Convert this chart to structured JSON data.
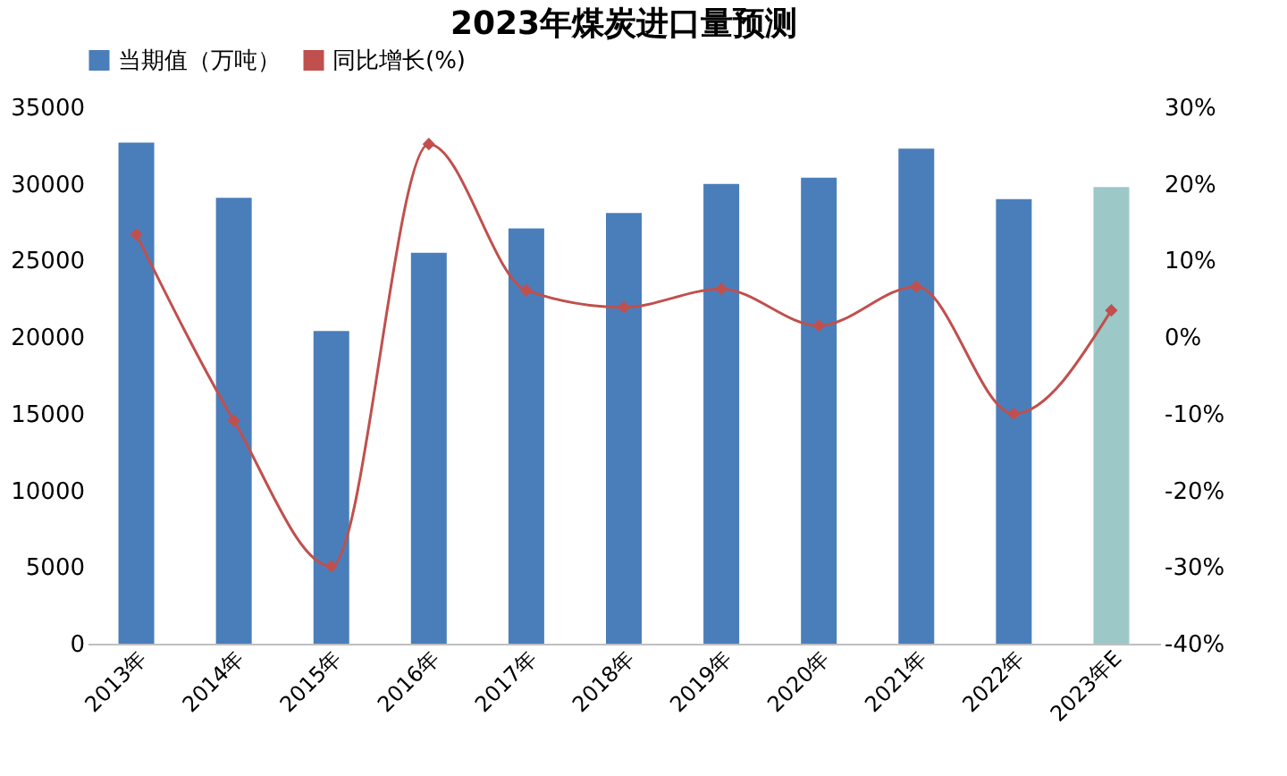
{
  "chart_data": {
    "type": "bar",
    "title": "2023年煤炭进口量预测",
    "categories": [
      "2013年",
      "2014年",
      "2015年",
      "2016年",
      "2017年",
      "2018年",
      "2019年",
      "2020年",
      "2021年",
      "2022年",
      "2023年E"
    ],
    "series": [
      {
        "name": "当期值（万吨）",
        "color": "#4a7ebb",
        "colors": [
          "#4a7ebb",
          "#4a7ebb",
          "#4a7ebb",
          "#4a7ebb",
          "#4a7ebb",
          "#4a7ebb",
          "#4a7ebb",
          "#4a7ebb",
          "#4a7ebb",
          "#4a7ebb",
          "#9cc8c8"
        ],
        "values": [
          32700,
          29100,
          20400,
          25500,
          27100,
          28100,
          30000,
          30400,
          32300,
          29000,
          29800
        ]
      },
      {
        "name": "同比增长(%)",
        "type": "line",
        "axis": "y2",
        "color": "#c0504d",
        "marker": "diamond",
        "values": [
          13.4,
          -10.9,
          -29.9,
          25.2,
          6.1,
          3.9,
          6.3,
          1.5,
          6.6,
          -10,
          3.5
        ]
      }
    ],
    "ylim": [
      0,
      35000
    ],
    "yticks": [
      0,
      5000,
      10000,
      15000,
      20000,
      25000,
      30000,
      35000
    ],
    "y2lim": [
      -40,
      30
    ],
    "y2ticks": [
      {
        "value": -40,
        "label": "-40%"
      },
      {
        "value": -30,
        "label": "-30%"
      },
      {
        "value": -20,
        "label": "-20%"
      },
      {
        "value": -10,
        "label": "-10%"
      },
      {
        "value": 0,
        "label": "0%"
      },
      {
        "value": 10,
        "label": "10%"
      },
      {
        "value": 20,
        "label": "20%"
      },
      {
        "value": 30,
        "label": "30%"
      }
    ],
    "grid": false,
    "legend": "top"
  }
}
